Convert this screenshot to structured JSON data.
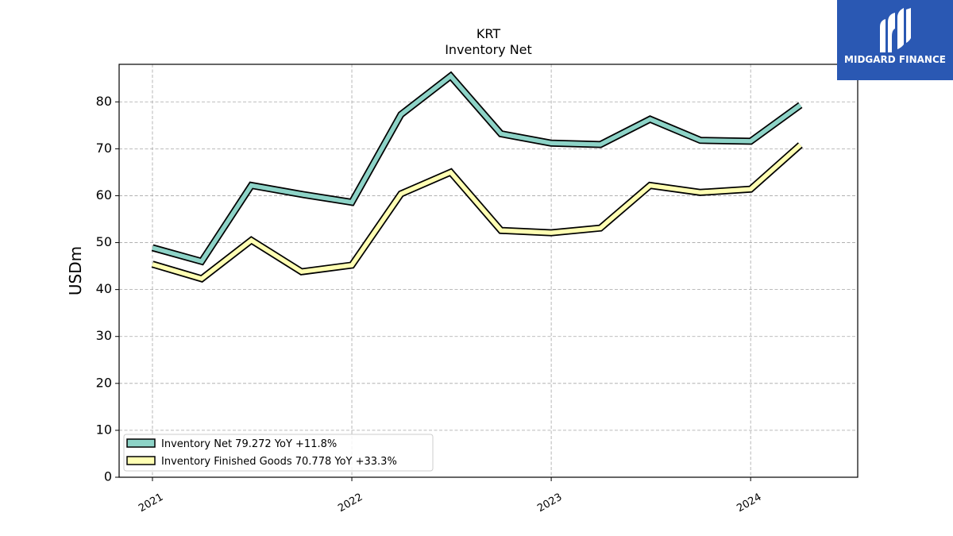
{
  "chart_data": {
    "type": "line",
    "title": "KRT",
    "subtitle": "Inventory Net",
    "ylabel": "USDm",
    "xlabel": "",
    "ylim": [
      0,
      88
    ],
    "yticks": [
      0,
      10,
      20,
      30,
      40,
      50,
      60,
      70,
      80
    ],
    "xlim": [
      "2020-11-01",
      "2024-07-15"
    ],
    "xticks": [
      {
        "label": "2021",
        "date": "2021-01-01"
      },
      {
        "label": "2022",
        "date": "2022-01-01"
      },
      {
        "label": "2023",
        "date": "2023-01-01"
      },
      {
        "label": "2024",
        "date": "2024-01-01"
      }
    ],
    "x": [
      "2021-01-01",
      "2021-04-01",
      "2021-07-01",
      "2021-10-01",
      "2022-01-01",
      "2022-04-01",
      "2022-07-01",
      "2022-10-01",
      "2023-01-01",
      "2023-04-01",
      "2023-07-01",
      "2023-10-01",
      "2024-01-01",
      "2024-04-01"
    ],
    "grid": true,
    "legend_position": "lower-left",
    "series": [
      {
        "name": "Inventory Net  79.272 YoY +11.8%",
        "color": "#8dd3c7",
        "values": [
          48.9,
          46.0,
          62.2,
          60.3,
          58.6,
          77.3,
          85.5,
          73.2,
          71.2,
          70.9,
          76.3,
          71.8,
          71.6,
          79.3
        ]
      },
      {
        "name": "Inventory Finished Goods  70.778 YoY +33.3%",
        "color": "#ffffb3",
        "values": [
          45.4,
          42.3,
          50.5,
          43.8,
          45.2,
          60.4,
          65.0,
          52.6,
          52.1,
          53.1,
          62.2,
          60.7,
          61.4,
          70.8
        ]
      }
    ]
  },
  "logo": {
    "text": "MIDGARD FINANCE",
    "color": "#2a58b3"
  }
}
